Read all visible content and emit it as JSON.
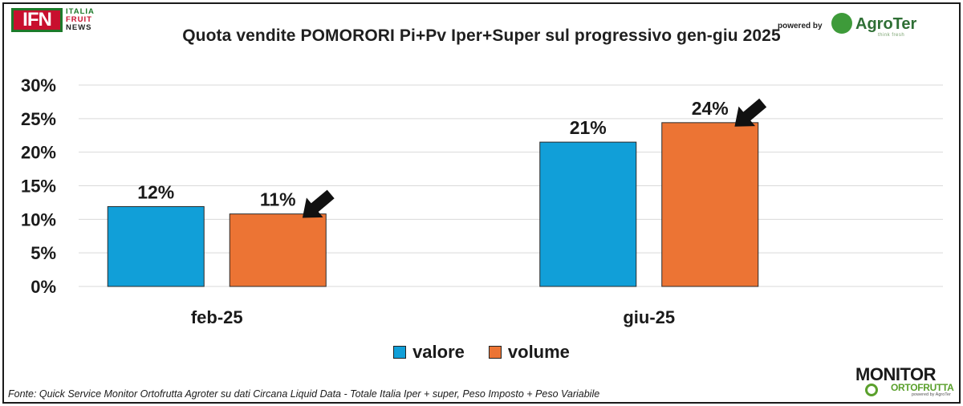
{
  "branding": {
    "ifn_mark": "IFN",
    "ifn_line1": "ITALIA",
    "ifn_line2": "FRUIT",
    "ifn_line3": "NEWS",
    "powered_by": "powered by",
    "agroter_name": "AgroTer",
    "agroter_tagline": "think fresh",
    "monitor_line1": "MONITOR",
    "monitor_line2": "ORTOFRUTTA",
    "monitor_line3": "powered by AgroTer"
  },
  "colors": {
    "valore": "#119fd8",
    "volume": "#ec7434",
    "axis_text": "#1a1a1a",
    "gridline": "#d9d9d9"
  },
  "source_note": "Fonte: Quick Service Monitor Ortofrutta Agroter su dati Circana Liquid Data - Totale Italia Iper + super, Peso Imposto + Peso Variabile",
  "chart_data": {
    "type": "bar",
    "title": "Quota vendite POMORORI Pi+Pv Iper+Super sul progressivo gen-giu 2025",
    "categories": [
      "feb-25",
      "giu-25"
    ],
    "series": [
      {
        "name": "valore",
        "values": [
          0.119,
          0.215
        ],
        "labels": [
          "12%",
          "21%"
        ]
      },
      {
        "name": "volume",
        "values": [
          0.108,
          0.244
        ],
        "labels": [
          "11%",
          "24%"
        ]
      }
    ],
    "ylim": [
      0,
      0.3
    ],
    "yticks": [
      "0%",
      "5%",
      "10%",
      "15%",
      "20%",
      "25%",
      "30%"
    ],
    "grid": true,
    "legend": "bottom-center",
    "annotations": [
      "arrow pointing at volume feb-25 bar",
      "arrow pointing at volume giu-25 bar"
    ]
  }
}
